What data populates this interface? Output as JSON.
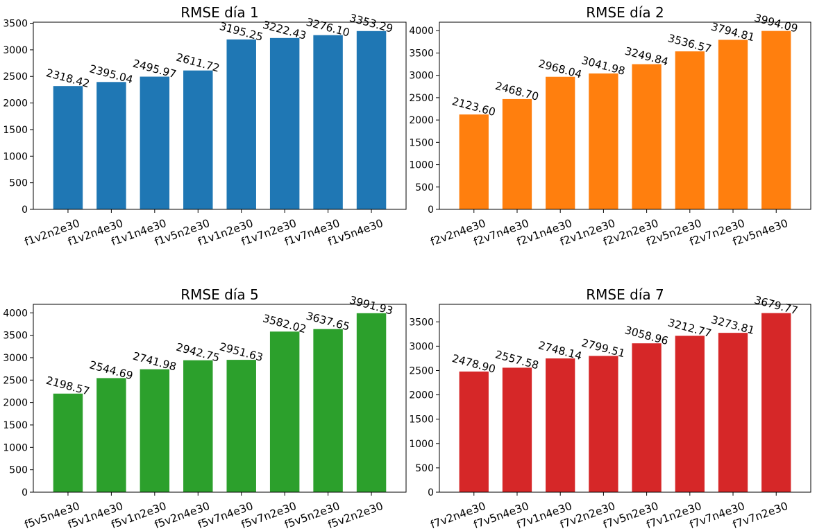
{
  "chart_data": [
    {
      "type": "bar",
      "title": "RMSE día 1",
      "categories": [
        "f1v2n2e30",
        "f1v2n4e30",
        "f1v1n4e30",
        "f1v5n2e30",
        "f1v1n2e30",
        "f1v7n2e30",
        "f1v7n4e30",
        "f1v5n4e30"
      ],
      "values": [
        2318.42,
        2395.04,
        2495.97,
        2611.72,
        3195.25,
        3222.43,
        3276.1,
        3353.29
      ],
      "value_labels": [
        "2318.42",
        "2395.04",
        "2495.97",
        "2611.72",
        "3195.25",
        "3222.43",
        "3276.10",
        "3353.29"
      ],
      "ylim": [
        0,
        3520
      ],
      "yticks": [
        0,
        500,
        1000,
        1500,
        2000,
        2500,
        3000,
        3500
      ],
      "color": "#1f77b4",
      "grid": false
    },
    {
      "type": "bar",
      "title": "RMSE día 2",
      "categories": [
        "f2v2n4e30",
        "f2v7n4e30",
        "f2v1n4e30",
        "f2v1n2e30",
        "f2v2n2e30",
        "f2v5n2e30",
        "f2v7n2e30",
        "f2v5n4e30"
      ],
      "values": [
        2123.6,
        2468.7,
        2968.04,
        3041.98,
        3249.84,
        3536.57,
        3794.81,
        3994.09
      ],
      "value_labels": [
        "2123.60",
        "2468.70",
        "2968.04",
        "3041.98",
        "3249.84",
        "3536.57",
        "3794.81",
        "3994.09"
      ],
      "ylim": [
        0,
        4190
      ],
      "yticks": [
        0,
        500,
        1000,
        1500,
        2000,
        2500,
        3000,
        3500,
        4000
      ],
      "color": "#ff7f0e",
      "grid": false
    },
    {
      "type": "bar",
      "title": "RMSE día 5",
      "categories": [
        "f5v5n4e30",
        "f5v1n4e30",
        "f5v1n2e30",
        "f5v2n4e30",
        "f5v7n4e30",
        "f5v7n2e30",
        "f5v5n2e30",
        "f5v2n2e30"
      ],
      "values": [
        2198.57,
        2544.69,
        2741.98,
        2942.75,
        2951.63,
        3582.02,
        3637.65,
        3991.93
      ],
      "value_labels": [
        "2198.57",
        "2544.69",
        "2741.98",
        "2942.75",
        "2951.63",
        "3582.02",
        "3637.65",
        "3991.93"
      ],
      "ylim": [
        0,
        4190
      ],
      "yticks": [
        0,
        500,
        1000,
        1500,
        2000,
        2500,
        3000,
        3500,
        4000
      ],
      "color": "#2ca02c",
      "grid": false
    },
    {
      "type": "bar",
      "title": "RMSE día 7",
      "categories": [
        "f7v2n4e30",
        "f7v5n4e30",
        "f7v1n4e30",
        "f7v2n2e30",
        "f7v5n2e30",
        "f7v1n2e30",
        "f7v7n4e30",
        "f7v7n2e30"
      ],
      "values": [
        2478.9,
        2557.58,
        2748.14,
        2799.51,
        3058.96,
        3212.77,
        3273.81,
        3679.77
      ],
      "value_labels": [
        "2478.90",
        "2557.58",
        "2748.14",
        "2799.51",
        "3058.96",
        "3212.77",
        "3273.81",
        "3679.77"
      ],
      "ylim": [
        0,
        3860
      ],
      "yticks": [
        0,
        500,
        1000,
        1500,
        2000,
        2500,
        3000,
        3500
      ],
      "color": "#d62728",
      "grid": false
    }
  ]
}
